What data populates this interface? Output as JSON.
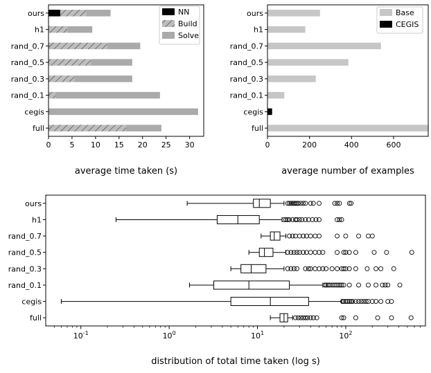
{
  "chart_data": [
    {
      "type": "bar",
      "orientation": "horizontal",
      "stacked": true,
      "title": "",
      "xlabel": "average time taken (s)",
      "ylabel": "",
      "categories": [
        "ours",
        "h1",
        "rand_0.7",
        "rand_0.5",
        "rand_0.3",
        "rand_0.1",
        "cegis",
        "full"
      ],
      "series": [
        {
          "name": "NN",
          "color": "#000000",
          "hatch": "none",
          "values": [
            2.5,
            0,
            0,
            0,
            0,
            0,
            0,
            0
          ]
        },
        {
          "name": "Build",
          "color": "#bdbdbd",
          "hatch": "diagonal",
          "values": [
            5.5,
            4,
            12.5,
            9,
            5.5,
            1.5,
            0,
            16.5
          ]
        },
        {
          "name": "Solve",
          "color": "#aaaaaa",
          "hatch": "none",
          "values": [
            5.2,
            5.3,
            7,
            8.8,
            12.3,
            22.2,
            31.8,
            7.5
          ]
        }
      ],
      "xlim": [
        0,
        33
      ],
      "xticks": [
        "0",
        "5",
        "10",
        "15",
        "20",
        "25",
        "30"
      ],
      "legend": {
        "placement": "top-right",
        "entries": [
          "NN",
          "Build",
          "Solve"
        ]
      },
      "grid": false
    },
    {
      "type": "bar",
      "orientation": "horizontal",
      "title": "",
      "xlabel": "average number of examples",
      "ylabel": "",
      "categories": [
        "ours",
        "h1",
        "rand_0.7",
        "rand_0.5",
        "rand_0.3",
        "rand_0.1",
        "cegis",
        "full"
      ],
      "series": [
        {
          "name": "Base",
          "color": "#c6c6c6",
          "values": [
            250,
            180,
            540,
            385,
            230,
            80,
            0,
            790
          ]
        },
        {
          "name": "CEGIS",
          "color": "#000000",
          "values": [
            0,
            0,
            0,
            0,
            0,
            0,
            22,
            0
          ]
        }
      ],
      "xlim": [
        0,
        765
      ],
      "xticks": [
        "0",
        "200",
        "400",
        "600"
      ],
      "legend": {
        "placement": "top-right",
        "entries": [
          "Base",
          "CEGIS"
        ]
      },
      "grid": false
    },
    {
      "type": "box",
      "orientation": "horizontal",
      "title": "",
      "xlabel": "distribution of total time taken (log s)",
      "ylabel": "",
      "xscale": "log",
      "xlim": [
        0.04,
        800
      ],
      "xticks": [
        "10^-1",
        "10^0",
        "10^1",
        "10^2"
      ],
      "categories": [
        "ours",
        "h1",
        "rand_0.7",
        "rand_0.5",
        "rand_0.3",
        "rand_0.1",
        "cegis",
        "full"
      ],
      "boxes": [
        {
          "whisker_low": 1.6,
          "q1": 9,
          "median": 10.5,
          "q3": 14,
          "whisker_high": 20,
          "outliers": [
            22,
            23,
            24,
            25,
            26,
            27,
            28,
            29,
            31,
            33,
            35,
            40,
            43,
            50,
            75,
            80,
            85,
            110,
            115
          ]
        },
        {
          "whisker_low": 0.25,
          "q1": 3.5,
          "median": 6,
          "q3": 10.5,
          "whisker_high": 19,
          "outliers": [
            20,
            21,
            22,
            23,
            25,
            27,
            28,
            30,
            32,
            35,
            38,
            42,
            46,
            50,
            80,
            85,
            90
          ]
        },
        {
          "whisker_low": 11,
          "q1": 14,
          "median": 15.5,
          "q3": 18,
          "whisker_high": 21,
          "outliers": [
            23,
            25,
            27,
            30,
            33,
            36,
            40,
            45,
            50,
            80,
            100,
            140,
            180,
            200
          ]
        },
        {
          "whisker_low": 8,
          "q1": 10.5,
          "median": 12,
          "q3": 15,
          "whisker_high": 21,
          "outliers": [
            22,
            24,
            26,
            28,
            30,
            33,
            36,
            40,
            45,
            50,
            55,
            80,
            95,
            100,
            110,
            130,
            210,
            290,
            560
          ]
        },
        {
          "whisker_low": 5,
          "q1": 6.5,
          "median": 8.5,
          "q3": 12.5,
          "whisker_high": 20,
          "outliers": [
            22,
            24,
            26,
            28,
            35,
            38,
            40,
            45,
            50,
            55,
            60,
            70,
            80,
            90,
            95,
            100,
            110,
            130,
            175,
            220,
            250,
            350
          ]
        },
        {
          "whisker_low": 1.7,
          "q1": 3.2,
          "median": 8,
          "q3": 23,
          "whisker_high": 55,
          "outliers": [
            58,
            60,
            63,
            66,
            70,
            74,
            78,
            82,
            86,
            90,
            95,
            110,
            140,
            180,
            220,
            260,
            280,
            300,
            410
          ]
        },
        {
          "whisker_low": 0.06,
          "q1": 5,
          "median": 14,
          "q3": 38,
          "whisker_high": 90,
          "outliers": [
            92,
            95,
            100,
            105,
            110,
            115,
            120,
            130,
            140,
            150,
            160,
            170,
            180,
            200,
            220,
            250,
            300,
            330
          ]
        },
        {
          "whisker_low": 14,
          "q1": 18,
          "median": 20,
          "q3": 22,
          "whisker_high": 25,
          "outliers": [
            27,
            29,
            31,
            33,
            35,
            37,
            40,
            43,
            47,
            90,
            95,
            130,
            230,
            330,
            550
          ]
        }
      ],
      "grid": false
    }
  ]
}
